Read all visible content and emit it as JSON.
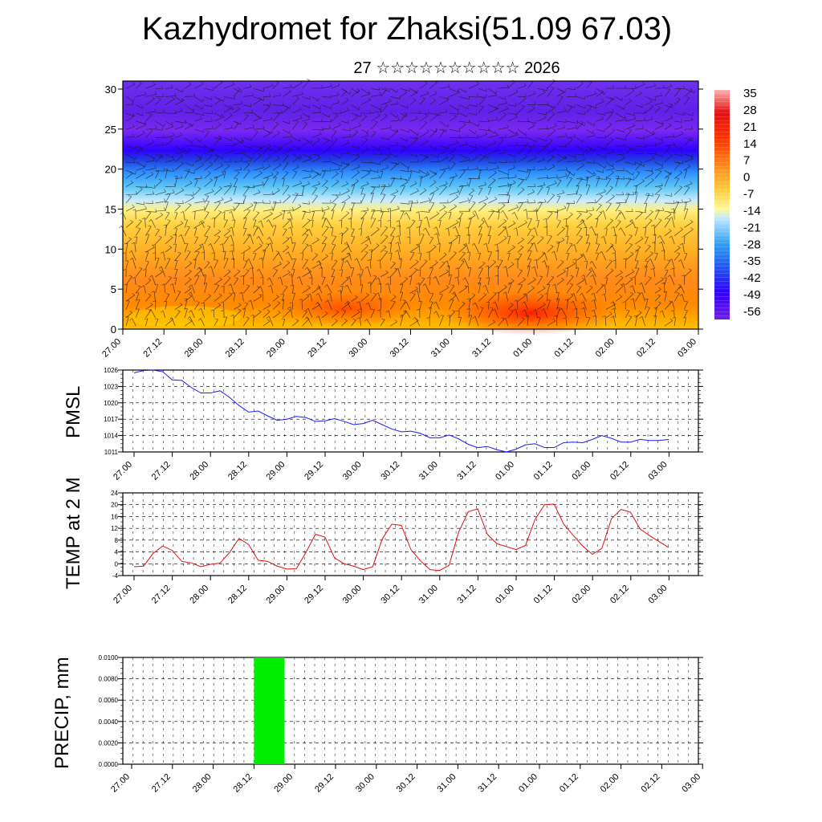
{
  "title": "Kazhydromet for Zhaksi(51.09 67.03)",
  "subtitle": "27 ☆☆☆☆☆☆☆☆☆☆ 2026",
  "colors": {
    "pmsl": "#1a1aff",
    "temp": "#e01010",
    "precip": "#00ee00"
  },
  "chart_data": [
    {
      "type": "heatmap",
      "title": "Kazhydromet for Zhaksi(51.09 67.03)",
      "subtitle": "27 ☆☆☆☆☆☆☆☆☆☆ 2026",
      "x_ticks": [
        "27.00",
        "27.12",
        "28.00",
        "28.12",
        "29.00",
        "29.12",
        "30.00",
        "30.12",
        "31.00",
        "31.12",
        "01.00",
        "01.12",
        "02.00",
        "02.12",
        "03.00"
      ],
      "y_ticks": [
        "0",
        "5",
        "10",
        "15",
        "20",
        "25",
        "30"
      ],
      "ylim": [
        0,
        31
      ],
      "colorbar_labels": [
        "35",
        "28",
        "21",
        "14",
        "7",
        "0",
        "-7",
        "-14",
        "-21",
        "-28",
        "-35",
        "-42",
        "-49",
        "-56"
      ],
      "colorbar_range": [
        -60,
        38
      ],
      "overlay": "wind barbs"
    },
    {
      "type": "line",
      "ylabel": "PMSL",
      "y_ticks": [
        "1011",
        "1014",
        "1017",
        "1020",
        "1023",
        "1026"
      ],
      "ylim": [
        1011,
        1026
      ],
      "x_ticks": [
        "27.00",
        "27.12",
        "28.00",
        "28.12",
        "29.00",
        "29.12",
        "30.00",
        "30.12",
        "31.00",
        "31.12",
        "01.00",
        "01.12",
        "02.00",
        "02.12",
        "03.00"
      ],
      "series": [
        {
          "values": [
            1025.5,
            1025.9,
            1026.0,
            1025.7,
            1024.2,
            1024.1,
            1022.8,
            1021.8,
            1021.8,
            1022.2,
            1021.0,
            1019.5,
            1018.3,
            1018.5,
            1017.6,
            1016.8,
            1017.0,
            1017.5,
            1017.3,
            1016.6,
            1016.7,
            1017.1,
            1016.6,
            1016.0,
            1016.2,
            1016.8,
            1016.0,
            1015.2,
            1014.7,
            1014.8,
            1014.4,
            1013.6,
            1013.6,
            1014.1,
            1013.4,
            1012.4,
            1011.8,
            1012.0,
            1011.4,
            1011.0,
            1011.5,
            1012.3,
            1012.5,
            1011.8,
            1011.8,
            1012.7,
            1012.8,
            1012.7,
            1013.3,
            1014.0,
            1013.5,
            1012.8,
            1012.8,
            1013.3,
            1013.1,
            1013.1,
            1013.3
          ]
        }
      ]
    },
    {
      "type": "line",
      "ylabel": "TEMP at 2 M",
      "y_ticks": [
        "-4",
        "0",
        "4",
        "8",
        "12",
        "16",
        "20",
        "24"
      ],
      "ylim": [
        -4,
        24
      ],
      "x_ticks": [
        "27.00",
        "27.12",
        "28.00",
        "28.12",
        "29.00",
        "29.12",
        "30.00",
        "30.12",
        "31.00",
        "31.12",
        "01.00",
        "01.12",
        "02.00",
        "02.12",
        "03.00"
      ],
      "series": [
        {
          "values": [
            -1.0,
            -0.8,
            3.5,
            6.0,
            4.5,
            0.8,
            0.3,
            -1.0,
            -0.2,
            0.2,
            3.8,
            8.6,
            6.5,
            1.2,
            0.8,
            -0.8,
            -1.8,
            -1.7,
            3.8,
            10.0,
            9.0,
            2.0,
            0.0,
            -0.8,
            -2.0,
            -1.0,
            8.4,
            13.4,
            13.0,
            4.8,
            1.0,
            -2.0,
            -2.3,
            -0.5,
            10.7,
            17.6,
            18.6,
            10.0,
            6.8,
            5.8,
            4.8,
            6.2,
            15.0,
            20.0,
            20.2,
            13.4,
            9.6,
            6.0,
            3.2,
            5.2,
            15.2,
            18.4,
            17.5,
            11.8,
            9.5,
            7.5,
            5.5
          ]
        }
      ]
    },
    {
      "type": "bar",
      "ylabel": "PRECIP, mm",
      "y_ticks": [
        "0.0000",
        "0.0020",
        "0.0040",
        "0.0060",
        "0.0080",
        "0.0100"
      ],
      "ylim": [
        0,
        0.01
      ],
      "x_ticks": [
        "27.00",
        "27.12",
        "28.00",
        "28.12",
        "29.00",
        "29.12",
        "30.00",
        "30.12",
        "31.00",
        "31.12",
        "01.00",
        "01.12",
        "02.00",
        "02.12",
        "03.00"
      ],
      "bars": [
        {
          "start": "28.12",
          "end": "28.21",
          "value": 0.01
        }
      ]
    }
  ]
}
